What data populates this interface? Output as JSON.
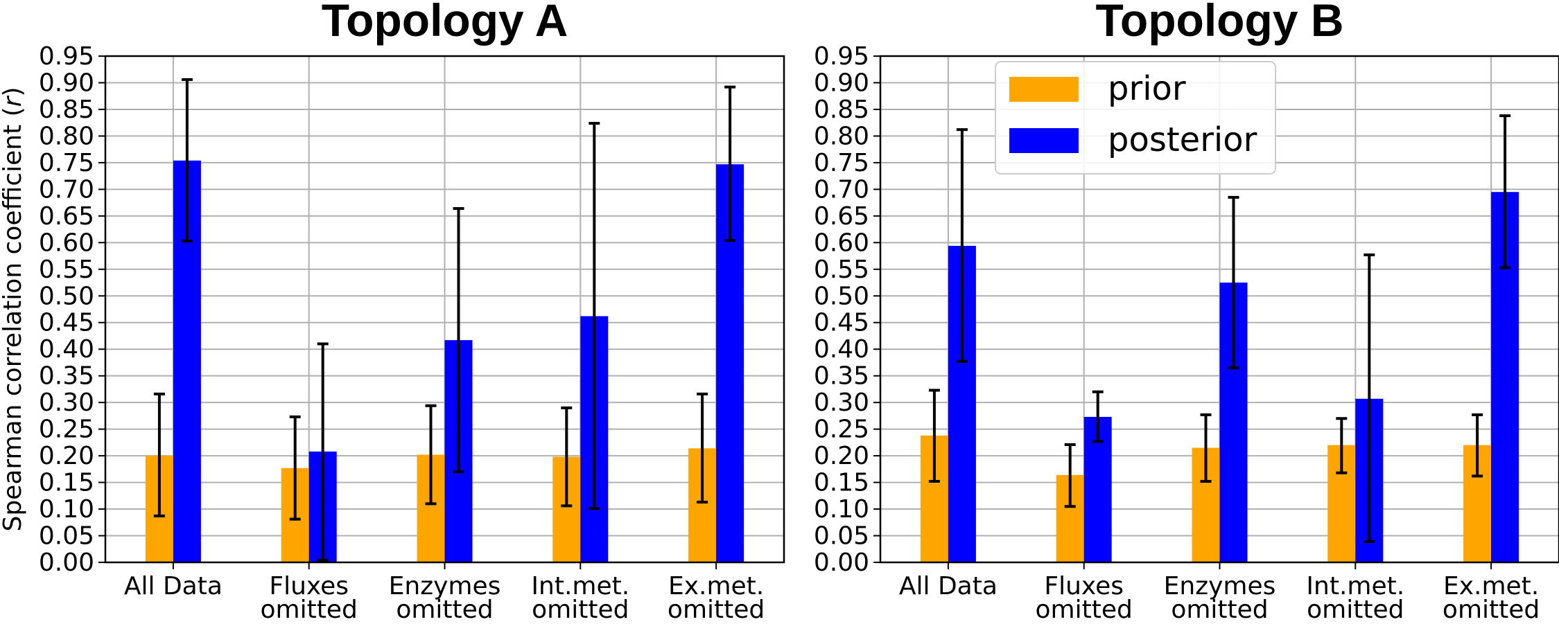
{
  "chart_data": [
    {
      "type": "bar",
      "title": "Topology A",
      "ylabel": "Spearman correlation coefficient (r)",
      "ylim": [
        0,
        0.95
      ],
      "yticks": [
        "0.00",
        "0.05",
        "0.10",
        "0.15",
        "0.20",
        "0.25",
        "0.30",
        "0.35",
        "0.40",
        "0.45",
        "0.50",
        "0.55",
        "0.60",
        "0.65",
        "0.70",
        "0.75",
        "0.80",
        "0.85",
        "0.90",
        "0.95"
      ],
      "categories": [
        [
          "All Data"
        ],
        [
          "Fluxes",
          "omitted"
        ],
        [
          "Enzymes",
          "omitted"
        ],
        [
          "Int.met.",
          "omitted"
        ],
        [
          "Ex.met.",
          "omitted"
        ]
      ],
      "grid": true,
      "series": [
        {
          "name": "prior",
          "color": "#FFA500",
          "values": [
            0.2,
            0.177,
            0.202,
            0.198,
            0.214
          ],
          "err_low": [
            0.087,
            0.081,
            0.11,
            0.106,
            0.113
          ],
          "err_high": [
            0.316,
            0.273,
            0.294,
            0.29,
            0.316
          ]
        },
        {
          "name": "posterior",
          "color": "#0000FF",
          "values": [
            0.754,
            0.208,
            0.417,
            0.462,
            0.747
          ],
          "err_low": [
            0.603,
            0.004,
            0.17,
            0.101,
            0.604
          ],
          "err_high": [
            0.906,
            0.41,
            0.664,
            0.824,
            0.892
          ]
        }
      ]
    },
    {
      "type": "bar",
      "title": "Topology B",
      "ylabel": "",
      "ylim": [
        0,
        0.95
      ],
      "yticks": [
        "0.00",
        "0.05",
        "0.10",
        "0.15",
        "0.20",
        "0.25",
        "0.30",
        "0.35",
        "0.40",
        "0.45",
        "0.50",
        "0.55",
        "0.60",
        "0.65",
        "0.70",
        "0.75",
        "0.80",
        "0.85",
        "0.90",
        "0.95"
      ],
      "categories": [
        [
          "All Data"
        ],
        [
          "Fluxes",
          "omitted"
        ],
        [
          "Enzymes",
          "omitted"
        ],
        [
          "Int.met.",
          "omitted"
        ],
        [
          "Ex.met.",
          "omitted"
        ]
      ],
      "grid": true,
      "legend": {
        "position": "top-left",
        "entries": [
          "prior",
          "posterior"
        ]
      },
      "series": [
        {
          "name": "prior",
          "color": "#FFA500",
          "values": [
            0.238,
            0.164,
            0.215,
            0.22,
            0.22
          ],
          "err_low": [
            0.152,
            0.105,
            0.152,
            0.168,
            0.162
          ],
          "err_high": [
            0.323,
            0.221,
            0.277,
            0.27,
            0.277
          ]
        },
        {
          "name": "posterior",
          "color": "#0000FF",
          "values": [
            0.594,
            0.273,
            0.525,
            0.307,
            0.695
          ],
          "err_low": [
            0.377,
            0.227,
            0.365,
            0.039,
            0.553
          ],
          "err_high": [
            0.812,
            0.32,
            0.685,
            0.577,
            0.838
          ]
        }
      ]
    }
  ]
}
